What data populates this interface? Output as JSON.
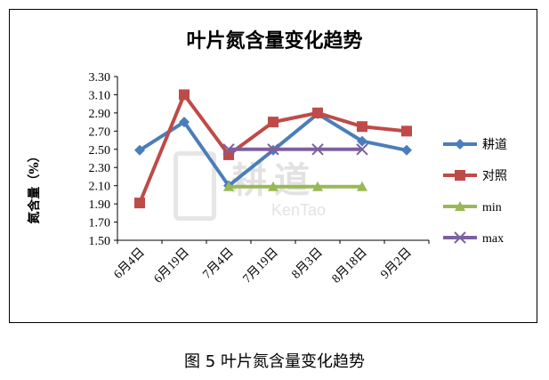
{
  "caption": "图 5 叶片氮含量变化趋势",
  "watermark": {
    "cn": "耕道",
    "en": "KenTao"
  },
  "chart_data": {
    "type": "line",
    "title": "叶片氮含量变化趋势",
    "ylabel": "氮含量（%）",
    "xlabel": "",
    "ylim": [
      1.5,
      3.3
    ],
    "yticks": [
      "1.50",
      "1.70",
      "1.90",
      "2.10",
      "2.30",
      "2.50",
      "2.70",
      "2.90",
      "3.10",
      "3.30"
    ],
    "categories": [
      "6月4日",
      "6月19日",
      "7月4日",
      "7月19日",
      "8月3日",
      "8月18日",
      "9月2日"
    ],
    "grid": false,
    "legend_position": "right",
    "series": [
      {
        "name": "耕道",
        "color": "#4a7ebb",
        "marker": "diamond",
        "values": [
          2.49,
          2.8,
          2.1,
          2.49,
          2.89,
          2.59,
          2.49
        ]
      },
      {
        "name": "对照",
        "color": "#be4b48",
        "marker": "square",
        "values": [
          1.91,
          3.1,
          2.44,
          2.8,
          2.9,
          2.75,
          2.7
        ]
      },
      {
        "name": "min",
        "color": "#98b954",
        "marker": "triangle",
        "values": [
          null,
          null,
          2.09,
          2.09,
          2.09,
          2.09,
          null
        ]
      },
      {
        "name": "max",
        "color": "#7d60a0",
        "marker": "x",
        "values": [
          null,
          null,
          2.5,
          2.5,
          2.5,
          2.5,
          null
        ]
      }
    ]
  }
}
